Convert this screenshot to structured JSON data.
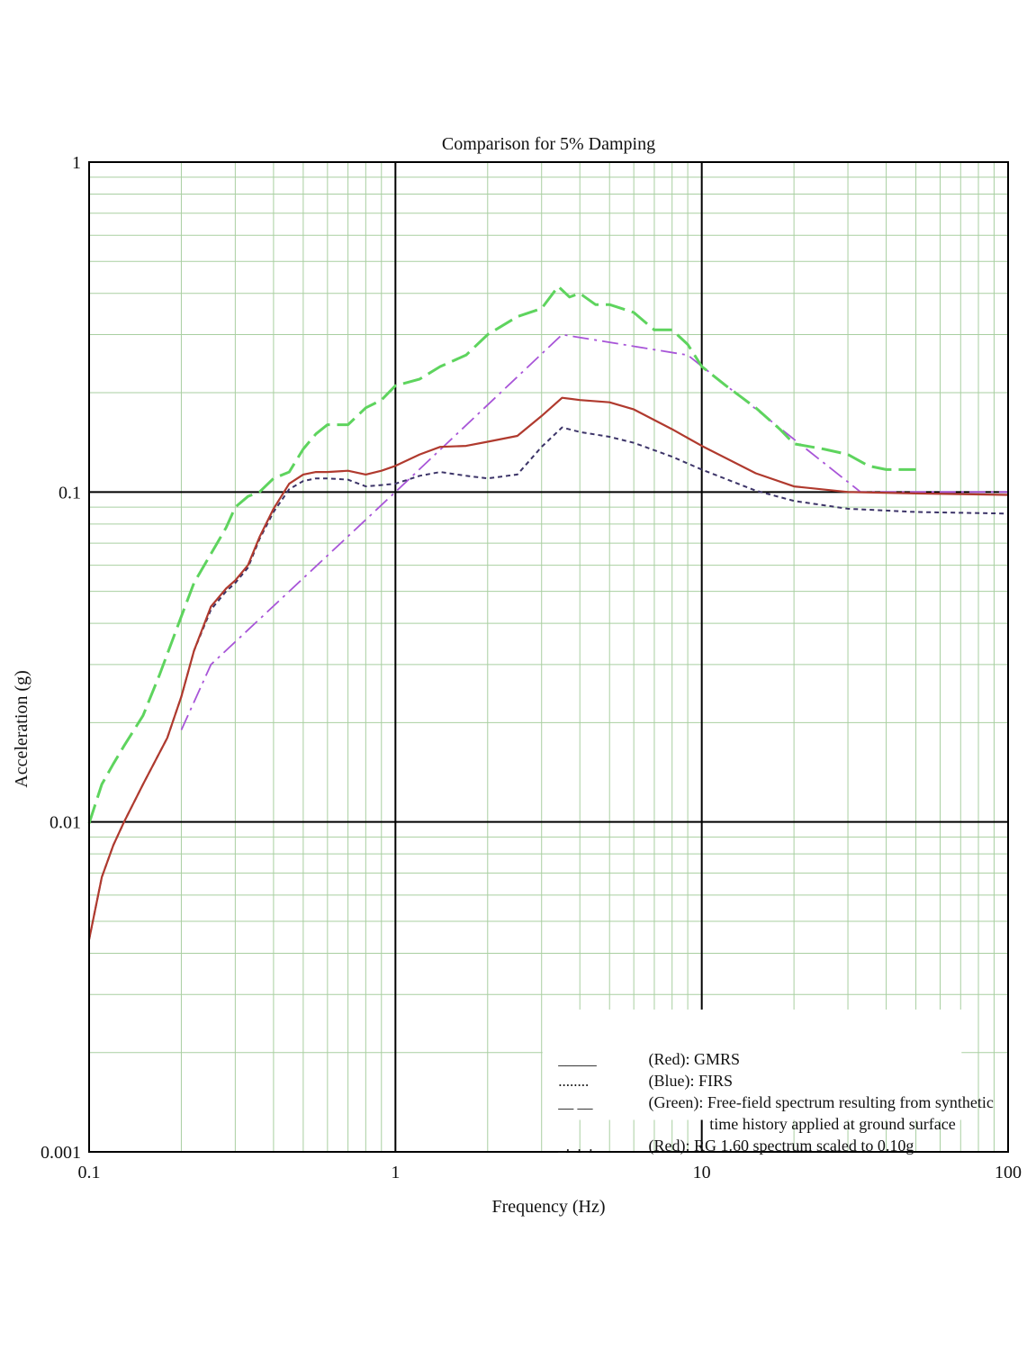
{
  "chart_data": {
    "type": "line",
    "title": "Comparison for 5% Damping",
    "xlabel": "Frequency (Hz)",
    "ylabel": "Acceleration (g)",
    "xscale": "log",
    "yscale": "log",
    "xlim": [
      0.1,
      100
    ],
    "ylim": [
      0.001,
      1
    ],
    "grid": true,
    "x_ticks": [
      "0.1",
      "1",
      "10",
      "100"
    ],
    "y_ticks": [
      "0.001",
      "0.01",
      "0.1",
      "1"
    ],
    "legend_position": "bottom-right",
    "legend": [
      {
        "symbol": "_____",
        "text": "(Red): GMRS",
        "color": "#b03a2e"
      },
      {
        "symbol": "........",
        "text": "(Blue): FIRS",
        "color": "#3c3468"
      },
      {
        "symbol": "__ __",
        "text": "(Green): Free-field spectrum resulting from synthetic",
        "text2": "time history applied at ground surface",
        "color": "#5ed45e"
      },
      {
        "symbol": "_._._.",
        "text": "(Red): RG 1.60 spectrum scaled to 0.10g",
        "color": "#a855d8"
      }
    ],
    "series": [
      {
        "key": "gmrs",
        "color": "#b03a2e",
        "style": "solid",
        "x": [
          0.1,
          0.11,
          0.12,
          0.13,
          0.15,
          0.18,
          0.2,
          0.22,
          0.25,
          0.28,
          0.3,
          0.33,
          0.36,
          0.4,
          0.45,
          0.5,
          0.55,
          0.6,
          0.7,
          0.8,
          0.9,
          1.0,
          1.2,
          1.4,
          1.7,
          2.0,
          2.5,
          3.0,
          3.5,
          4.0,
          5.0,
          6.0,
          8.0,
          10,
          15,
          20,
          30,
          50,
          100
        ],
        "y": [
          0.0044,
          0.0068,
          0.0085,
          0.01,
          0.013,
          0.018,
          0.024,
          0.033,
          0.045,
          0.051,
          0.054,
          0.06,
          0.073,
          0.089,
          0.106,
          0.113,
          0.115,
          0.115,
          0.116,
          0.113,
          0.116,
          0.12,
          0.13,
          0.137,
          0.138,
          0.142,
          0.148,
          0.17,
          0.193,
          0.19,
          0.187,
          0.178,
          0.155,
          0.138,
          0.114,
          0.104,
          0.1,
          0.099,
          0.098
        ]
      },
      {
        "key": "firs",
        "color": "#3c3468",
        "style": "dashed",
        "x": [
          0.1,
          0.11,
          0.12,
          0.13,
          0.15,
          0.18,
          0.2,
          0.22,
          0.25,
          0.28,
          0.3,
          0.33,
          0.36,
          0.4,
          0.45,
          0.5,
          0.55,
          0.6,
          0.7,
          0.8,
          0.9,
          1.0,
          1.2,
          1.4,
          1.7,
          2.0,
          2.5,
          3.0,
          3.5,
          4.0,
          5.0,
          6.0,
          8.0,
          10,
          15,
          20,
          30,
          50,
          100
        ],
        "y": [
          0.0044,
          0.0068,
          0.0085,
          0.01,
          0.013,
          0.018,
          0.024,
          0.033,
          0.044,
          0.05,
          0.053,
          0.059,
          0.072,
          0.087,
          0.102,
          0.108,
          0.11,
          0.11,
          0.109,
          0.104,
          0.105,
          0.106,
          0.112,
          0.115,
          0.112,
          0.11,
          0.113,
          0.137,
          0.157,
          0.152,
          0.147,
          0.141,
          0.128,
          0.117,
          0.101,
          0.094,
          0.089,
          0.087,
          0.086
        ]
      },
      {
        "key": "free-field",
        "color": "#5ed45e",
        "style": "longdash",
        "x": [
          0.1,
          0.11,
          0.12,
          0.13,
          0.15,
          0.17,
          0.2,
          0.22,
          0.25,
          0.28,
          0.3,
          0.33,
          0.36,
          0.4,
          0.45,
          0.5,
          0.55,
          0.6,
          0.7,
          0.8,
          0.9,
          1.0,
          1.2,
          1.4,
          1.7,
          2.0,
          2.5,
          3.0,
          3.4,
          3.7,
          4.0,
          4.5,
          5.0,
          6.0,
          7.0,
          8.0,
          9.0,
          10,
          12,
          15,
          18,
          20,
          25,
          30,
          35,
          40,
          50
        ],
        "y": [
          0.0099,
          0.013,
          0.015,
          0.017,
          0.021,
          0.028,
          0.042,
          0.053,
          0.065,
          0.078,
          0.09,
          0.097,
          0.1,
          0.11,
          0.115,
          0.135,
          0.15,
          0.16,
          0.16,
          0.18,
          0.19,
          0.21,
          0.22,
          0.24,
          0.26,
          0.3,
          0.34,
          0.36,
          0.42,
          0.39,
          0.4,
          0.37,
          0.37,
          0.35,
          0.31,
          0.31,
          0.28,
          0.24,
          0.21,
          0.18,
          0.155,
          0.14,
          0.135,
          0.13,
          0.12,
          0.117,
          0.117
        ]
      },
      {
        "key": "rg160",
        "color": "#a855d8",
        "style": "dashdot",
        "x": [
          0.2,
          0.25,
          1.0,
          3.5,
          9.0,
          33,
          100
        ],
        "y": [
          0.019,
          0.03,
          0.1,
          0.3,
          0.26,
          0.1,
          0.1
        ]
      }
    ]
  }
}
